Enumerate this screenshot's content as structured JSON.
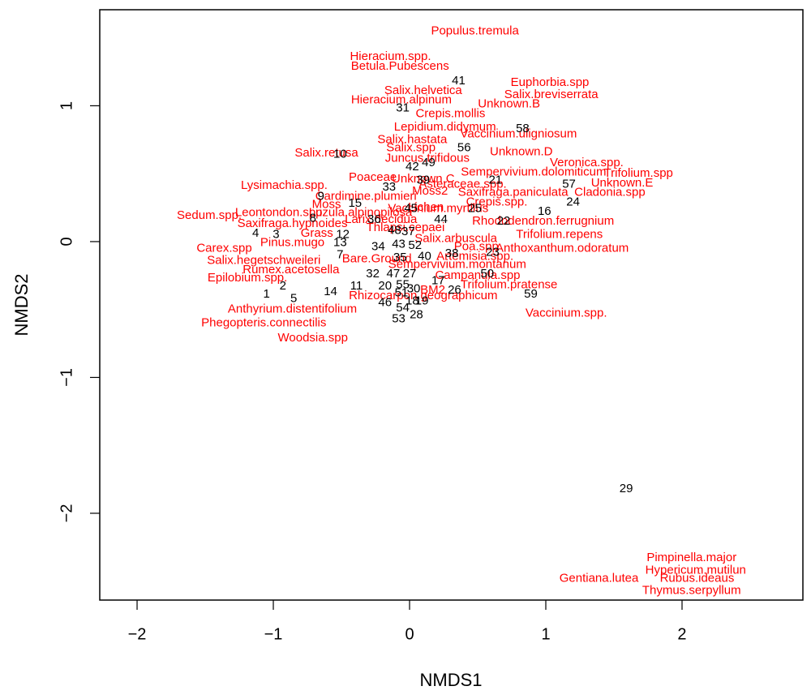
{
  "chart_data": {
    "type": "scatter",
    "x_label": "NMDS1",
    "y_label": "NMDS2",
    "xlim": [
      -2.274,
      2.887
    ],
    "ylim": [
      -2.639,
      1.707
    ],
    "xticks": [
      {
        "value": -2,
        "label": "−2"
      },
      {
        "value": -1,
        "label": "−1"
      },
      0,
      1,
      2
    ],
    "yticks": [
      {
        "value": -2,
        "label": "−2"
      },
      {
        "value": -1,
        "label": "−1"
      },
      0,
      1
    ],
    "series": [
      {
        "color": "#ff0000",
        "labels": [
          "Populus.tremula",
          "Hieracium.spp.",
          "Betula.Pubescens",
          "Euphorbia.spp",
          "Salix.helvetica",
          "Salix.breviserrata",
          "Hieracium.alpinum",
          "Unknown.B",
          "Crepis.mollis",
          "Lepidium.didymum",
          "Vaccinium.uligniosum",
          "Salix.hastata",
          "Salix.spp",
          "Salix.retusa",
          "Unknown.D",
          "Juncus.trifidous",
          "Veronica.spp.",
          "Sempervivium.dolomiticum",
          "Trifolium.spp",
          "Poaceae",
          "Unknown.C",
          "Unknown.E",
          "Lysimachia.spp.",
          "Asteraceae.spp.",
          "Moss2",
          "Saxifraga.paniculata",
          "Cladonia.spp",
          "Cardimine.plumieri",
          "Crepis.spp.",
          "Moss",
          "Vaccinium.myrtilus",
          "Lichen",
          "Luzula.alpinopilosa",
          "Leontondon.spp",
          "Sedum.spp.",
          "Saxifraga.hypnoides",
          "Larix.decidua",
          "Rhododendron.ferrugnium",
          "Grass",
          "Thlapsi.cepaei",
          "Trifolium.repens",
          "Pinus.mugo",
          "Salix.arbuscula",
          "Carex.spp",
          "Poa.spp",
          "Anthoxanthum.odoratum",
          "Salix.hegetschweileri",
          "Bare.Ground",
          "Artemisia.spp.",
          "Sempervivium.montanum",
          "Rumex.acetosella",
          "Epilobium.spp.",
          "Campanula.spp",
          "Trifolium.pratense",
          "BM2",
          "Rhizocarpon.geographicum",
          "Anthyrium.distentifolium",
          "Vaccinium.spp.",
          "Phegopteris.connectilis",
          "Woodsia.spp",
          "Pimpinella.major",
          "Hypericum.mutilun",
          "Gentiana.lutea",
          "Rubus.ideaus",
          "Thymus.serpyllum"
        ],
        "x": [
          0.48,
          -0.14,
          -0.07,
          1.03,
          0.1,
          1.04,
          -0.06,
          0.73,
          0.3,
          0.26,
          0.8,
          0.02,
          0.01,
          -0.61,
          0.82,
          0.13,
          1.3,
          0.91,
          1.68,
          -0.27,
          0.1,
          1.56,
          -0.92,
          0.39,
          0.15,
          0.76,
          1.47,
          -0.32,
          0.64,
          -0.61,
          0.21,
          0.12,
          -0.36,
          -0.96,
          -1.47,
          -0.86,
          -0.21,
          0.98,
          -0.68,
          -0.03,
          1.1,
          -0.86,
          0.34,
          -1.36,
          0.49,
          1.12,
          -1.07,
          -0.24,
          0.48,
          0.35,
          -0.87,
          -1.19,
          0.5,
          0.73,
          0.17,
          0.1,
          -0.86,
          1.15,
          -1.07,
          -0.71,
          2.07,
          2.1,
          1.39,
          2.11,
          2.07
        ],
        "y": [
          1.55,
          1.36,
          1.29,
          1.17,
          1.11,
          1.08,
          1.04,
          1.01,
          0.94,
          0.84,
          0.79,
          0.75,
          0.69,
          0.65,
          0.66,
          0.61,
          0.58,
          0.51,
          0.5,
          0.47,
          0.46,
          0.43,
          0.41,
          0.42,
          0.37,
          0.36,
          0.36,
          0.33,
          0.29,
          0.27,
          0.24,
          0.25,
          0.21,
          0.21,
          0.19,
          0.13,
          0.16,
          0.15,
          0.06,
          0.1,
          0.05,
          -0.01,
          0.02,
          -0.05,
          -0.04,
          -0.05,
          -0.14,
          -0.13,
          -0.11,
          -0.17,
          -0.21,
          -0.27,
          -0.25,
          -0.32,
          -0.36,
          -0.4,
          -0.5,
          -0.53,
          -0.6,
          -0.71,
          -2.33,
          -2.42,
          -2.48,
          -2.48,
          -2.57
        ]
      },
      {
        "color": "#000000",
        "labels": [
          "41",
          "31",
          "58",
          "56",
          "10",
          "42",
          "49",
          "33",
          "39",
          "21",
          "57",
          "9",
          "24",
          "15",
          "16",
          "45",
          "25",
          "8",
          "36",
          "44",
          "22",
          "12",
          "48",
          "37",
          "4",
          "3",
          "13",
          "34",
          "43",
          "52",
          "38",
          "23",
          "7",
          "35",
          "40",
          "32",
          "47",
          "27",
          "17",
          "50",
          "2",
          "11",
          "20",
          "55",
          "14",
          "30",
          "51",
          "19",
          "18",
          "26",
          "59",
          "1",
          "5",
          "46",
          "54",
          "28",
          "53",
          "29"
        ],
        "x": [
          0.36,
          -0.05,
          0.83,
          0.4,
          -0.51,
          0.02,
          0.14,
          -0.15,
          0.1,
          0.63,
          1.17,
          -0.65,
          1.2,
          -0.4,
          0.99,
          0.01,
          0.48,
          -0.71,
          -0.26,
          0.23,
          0.69,
          -0.49,
          -0.11,
          -0.01,
          -1.13,
          -0.98,
          -0.51,
          -0.23,
          -0.08,
          0.04,
          0.31,
          0.61,
          -0.51,
          -0.07,
          0.11,
          -0.27,
          -0.12,
          0.0,
          0.21,
          0.57,
          -0.93,
          -0.39,
          -0.18,
          -0.05,
          -0.58,
          0.03,
          -0.06,
          0.09,
          0.02,
          0.33,
          0.89,
          -1.05,
          -0.85,
          -0.18,
          -0.05,
          0.05,
          -0.08,
          1.59
        ],
        "y": [
          1.18,
          0.98,
          0.83,
          0.69,
          0.64,
          0.55,
          0.58,
          0.4,
          0.45,
          0.45,
          0.42,
          0.33,
          0.29,
          0.28,
          0.22,
          0.24,
          0.24,
          0.17,
          0.16,
          0.16,
          0.15,
          0.05,
          0.08,
          0.07,
          0.06,
          0.05,
          -0.01,
          -0.04,
          -0.02,
          -0.03,
          -0.09,
          -0.08,
          -0.1,
          -0.12,
          -0.11,
          -0.24,
          -0.24,
          -0.24,
          -0.29,
          -0.24,
          -0.33,
          -0.33,
          -0.33,
          -0.32,
          -0.37,
          -0.35,
          -0.38,
          -0.44,
          -0.44,
          -0.36,
          -0.39,
          -0.39,
          -0.42,
          -0.45,
          -0.49,
          -0.54,
          -0.57,
          -1.82
        ]
      }
    ]
  }
}
